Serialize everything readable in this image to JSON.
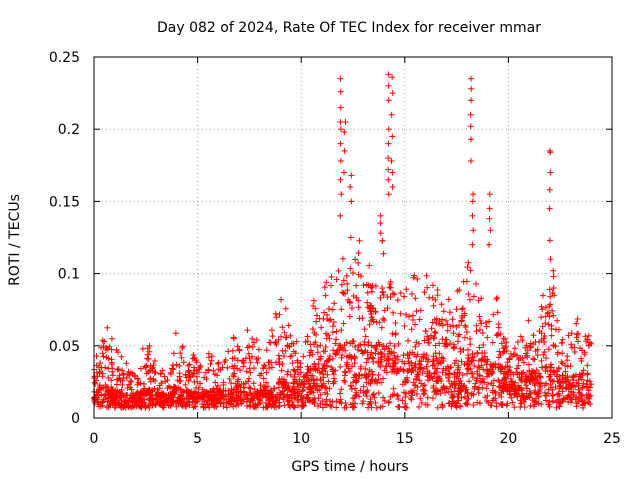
{
  "chart_data": {
    "type": "scatter",
    "title": "Day 082 of 2024, Rate Of TEC Index for receiver mmar",
    "xlabel": "GPS time / hours",
    "ylabel": "ROTI / TECUs",
    "xlim": [
      0,
      25
    ],
    "ylim": [
      0,
      0.25
    ],
    "grid": true,
    "marker": "+",
    "color": "#ff0000",
    "x_ticks": [
      0,
      5,
      10,
      15,
      20,
      25
    ],
    "x_tick_labels": [
      "0",
      "5",
      "10",
      "15",
      "20",
      "25"
    ],
    "y_ticks": [
      0,
      0.05,
      0.1,
      0.15,
      0.2,
      0.25
    ],
    "y_tick_labels": [
      "0",
      "0.05",
      "0.1",
      "0.15",
      "0.2",
      "0.25"
    ],
    "series": [
      {
        "name": "ROTI",
        "envelope_hours": [
          0,
          0.5,
          1,
          1.5,
          2,
          2.5,
          3,
          3.5,
          4,
          4.5,
          5,
          5.5,
          6,
          6.5,
          7,
          7.5,
          8,
          8.5,
          9,
          9.5,
          10,
          10.5,
          11,
          11.5,
          12,
          12.5,
          13,
          13.5,
          14,
          14.5,
          15,
          15.5,
          16,
          16.5,
          17,
          17.5,
          18,
          18.5,
          19,
          19.5,
          20,
          20.5,
          21,
          21.5,
          22,
          22.5,
          23,
          23.5,
          24
        ],
        "envelope_max": [
          0.04,
          0.07,
          0.05,
          0.04,
          0.03,
          0.06,
          0.04,
          0.035,
          0.065,
          0.05,
          0.04,
          0.045,
          0.04,
          0.05,
          0.065,
          0.07,
          0.05,
          0.055,
          0.09,
          0.065,
          0.05,
          0.085,
          0.095,
          0.11,
          0.12,
          0.12,
          0.13,
          0.1,
          0.13,
          0.12,
          0.09,
          0.1,
          0.1,
          0.09,
          0.085,
          0.09,
          0.12,
          0.11,
          0.09,
          0.085,
          0.065,
          0.06,
          0.07,
          0.075,
          0.11,
          0.06,
          0.06,
          0.075,
          0.08
        ],
        "envelope_median": [
          0.015,
          0.02,
          0.015,
          0.013,
          0.012,
          0.015,
          0.014,
          0.013,
          0.017,
          0.015,
          0.014,
          0.015,
          0.015,
          0.016,
          0.018,
          0.02,
          0.017,
          0.017,
          0.02,
          0.018,
          0.02,
          0.028,
          0.035,
          0.038,
          0.04,
          0.04,
          0.042,
          0.038,
          0.045,
          0.04,
          0.035,
          0.035,
          0.034,
          0.032,
          0.03,
          0.03,
          0.035,
          0.034,
          0.032,
          0.03,
          0.025,
          0.024,
          0.025,
          0.026,
          0.03,
          0.024,
          0.022,
          0.024,
          0.024
        ],
        "spikes": [
          {
            "x": 11.9,
            "y": [
              0.235,
              0.226,
              0.215,
              0.205,
              0.2,
              0.19,
              0.178,
              0.165,
              0.155,
              0.14
            ]
          },
          {
            "x": 12.1,
            "y": [
              0.205,
              0.198,
              0.185,
              0.17
            ]
          },
          {
            "x": 12.4,
            "y": [
              0.168,
              0.16,
              0.15,
              0.125
            ]
          },
          {
            "x": 14.2,
            "y": [
              0.238,
              0.23,
              0.22,
              0.2,
              0.19,
              0.18,
              0.172,
              0.165,
              0.155
            ]
          },
          {
            "x": 14.4,
            "y": [
              0.236,
              0.225,
              0.21,
              0.195,
              0.178,
              0.17,
              0.16
            ]
          },
          {
            "x": 13.8,
            "y": [
              0.14,
              0.135,
              0.128
            ]
          },
          {
            "x": 18.2,
            "y": [
              0.235,
              0.228,
              0.22,
              0.21,
              0.202,
              0.193,
              0.178
            ]
          },
          {
            "x": 18.3,
            "y": [
              0.155,
              0.15,
              0.14,
              0.13,
              0.12
            ]
          },
          {
            "x": 19.1,
            "y": [
              0.155,
              0.145,
              0.138,
              0.13,
              0.12
            ]
          },
          {
            "x": 22.0,
            "y": [
              0.185,
              0.184,
              0.17,
              0.158,
              0.145,
              0.123,
              0.11
            ]
          },
          {
            "x": 22.2,
            "y": [
              0.102,
              0.098,
              0.09,
              0.085
            ]
          }
        ]
      }
    ]
  }
}
